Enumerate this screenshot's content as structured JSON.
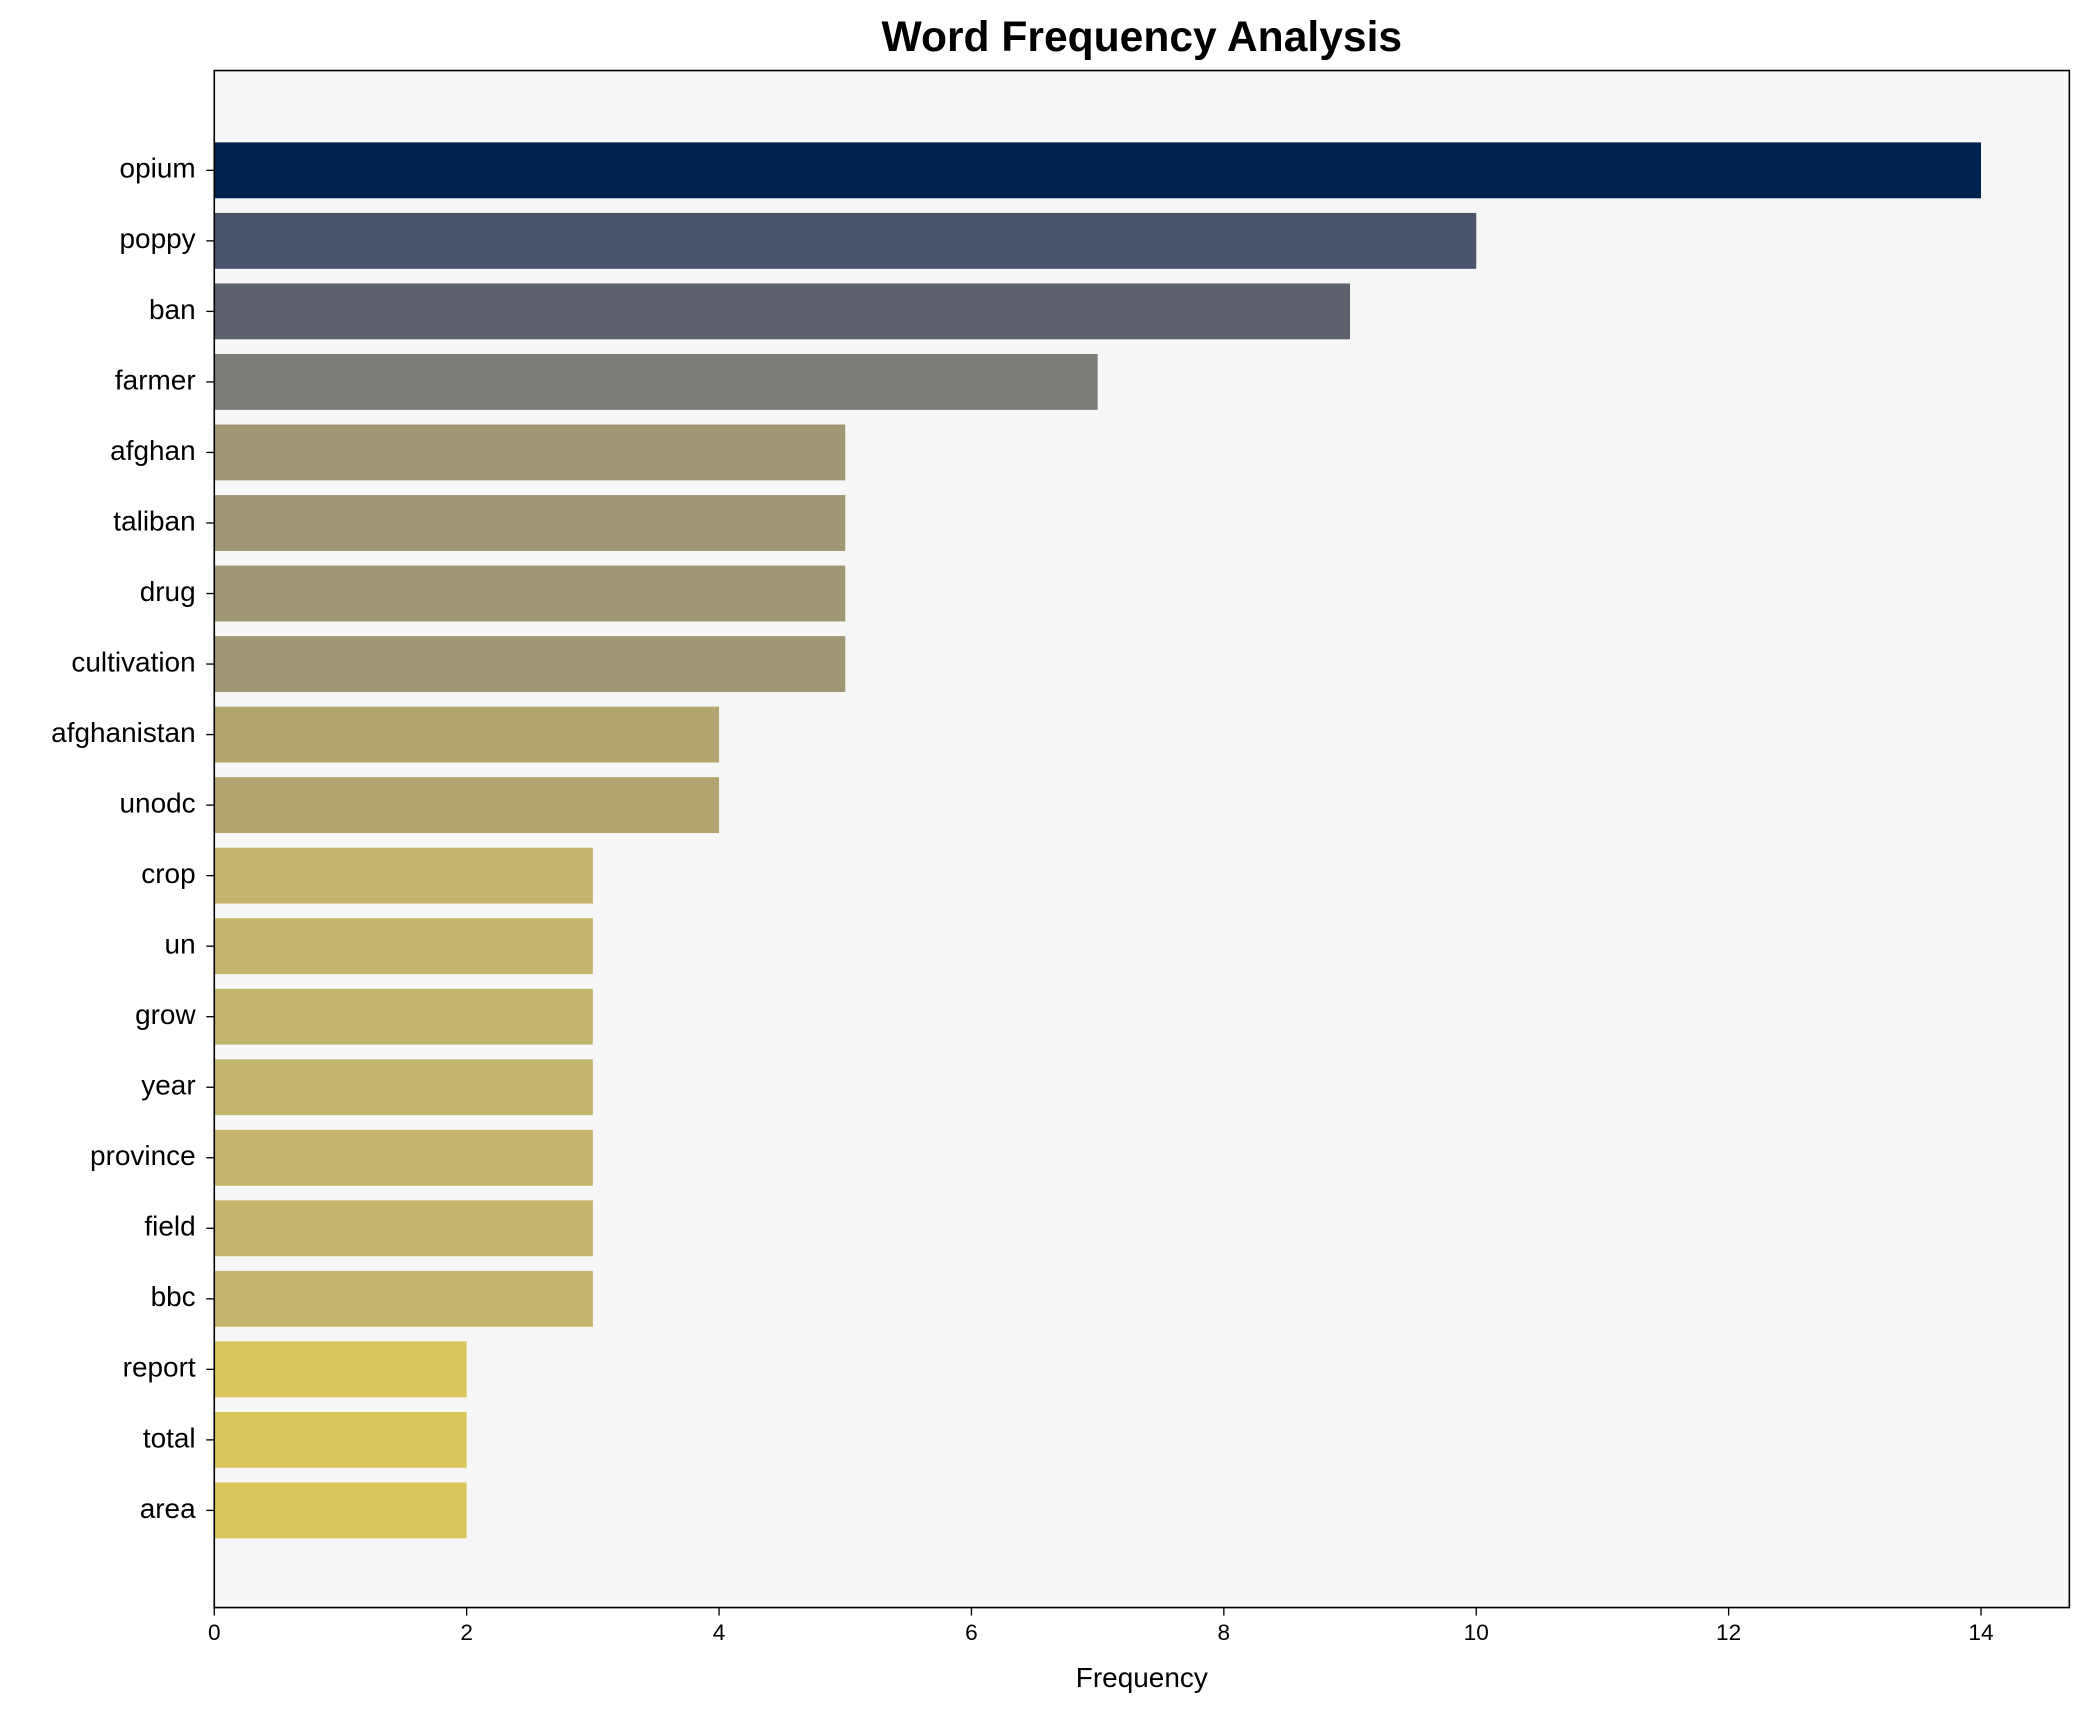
{
  "chart_data": {
    "type": "barh",
    "title": "Word Frequency Analysis",
    "xlabel": "Frequency",
    "categories": [
      "opium",
      "poppy",
      "ban",
      "farmer",
      "afghan",
      "taliban",
      "drug",
      "cultivation",
      "afghanistan",
      "unodc",
      "crop",
      "un",
      "grow",
      "year",
      "province",
      "field",
      "bbc",
      "report",
      "total",
      "area"
    ],
    "values": [
      14,
      10,
      9,
      7,
      5,
      5,
      5,
      5,
      4,
      4,
      3,
      3,
      3,
      3,
      3,
      3,
      3,
      2,
      2,
      2
    ],
    "colors": [
      "#00224e",
      "#4b546c",
      "#5d616e",
      "#7c7b78",
      "#a09775",
      "#a09775",
      "#a09775",
      "#a09775",
      "#b2a570",
      "#b2a570",
      "#c4b56c",
      "#c4b56c",
      "#c4b56c",
      "#c4b56c",
      "#c4b56c",
      "#c4b56c",
      "#c4b56c",
      "#d9c55a",
      "#d9c55a",
      "#d9c55a"
    ],
    "xlim": [
      0,
      14.7
    ],
    "xticks": [
      0,
      2,
      4,
      6,
      8,
      10,
      12,
      14
    ]
  }
}
